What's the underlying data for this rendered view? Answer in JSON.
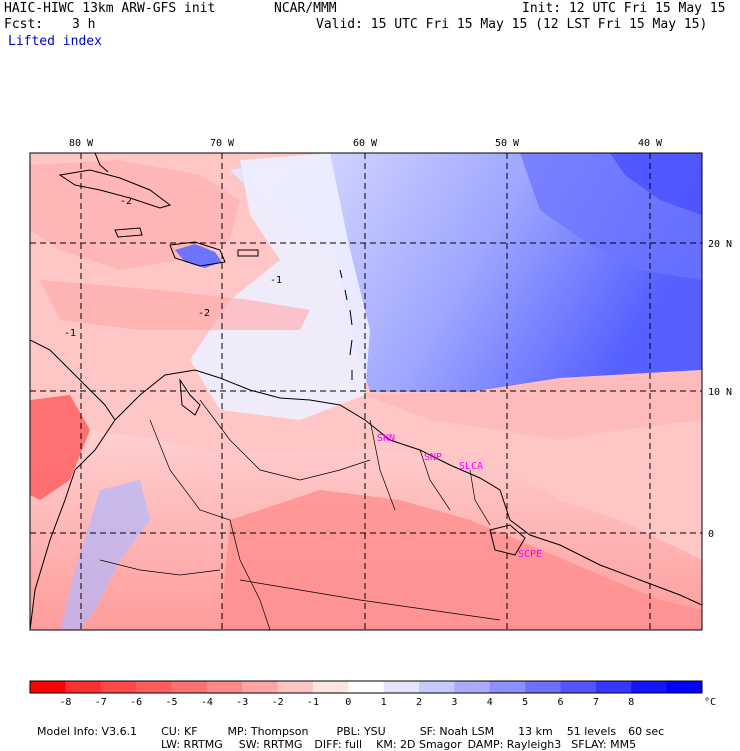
{
  "header": {
    "model_title": "HAIC-HIWC 13km ARW-GFS init",
    "org": "NCAR/MMM",
    "init": "Init: 12 UTC Fri 15 May 15",
    "fcst_label": "Fcst:",
    "fcst_value": "3 h",
    "valid": "Valid: 15 UTC Fri 15 May 15 (12 LST Fri 15 May 15)",
    "field": "Lifted index"
  },
  "map": {
    "lon_labels": [
      "80 W",
      "70 W",
      "60 W",
      "50 W",
      "40 W"
    ],
    "lat_labels": [
      "20 N",
      "10 N",
      "0"
    ],
    "stations": [
      "SKN",
      "SNP",
      "SLCA",
      "SCPE"
    ],
    "contour_labels": [
      "-2",
      "-2",
      "-1",
      "-1"
    ]
  },
  "colorbar": {
    "ticks": [
      "-8",
      "-7",
      "-6",
      "-5",
      "-4",
      "-3",
      "-2",
      "-1",
      "0",
      "1",
      "2",
      "3",
      "4",
      "5",
      "6",
      "7",
      "8"
    ],
    "unit": "°C",
    "colors": [
      "#ff0000",
      "#ff3030",
      "#ff4848",
      "#ff5c5c",
      "#ff7070",
      "#ff8888",
      "#ffa4a4",
      "#ffc4c4",
      "#ffe4e4",
      "#ffffff",
      "#e4e4ff",
      "#c8c8ff",
      "#aaaaff",
      "#8e8eff",
      "#7070ff",
      "#5454ff",
      "#3636ff",
      "#1414ff",
      "#0000ff"
    ]
  },
  "footer": {
    "line1": [
      "Model Info: V3.6.1",
      "CU: KF",
      "MP: Thompson",
      "PBL: YSU",
      "SF: Noah LSM",
      "13 km",
      "51 levels",
      "60 sec"
    ],
    "line2": [
      "LW: RRTMG",
      "SW: RRTMG",
      "DIFF: full",
      "KM: 2D Smagor",
      "DAMP: Rayleigh3",
      "SFLAY: MM5"
    ]
  }
}
